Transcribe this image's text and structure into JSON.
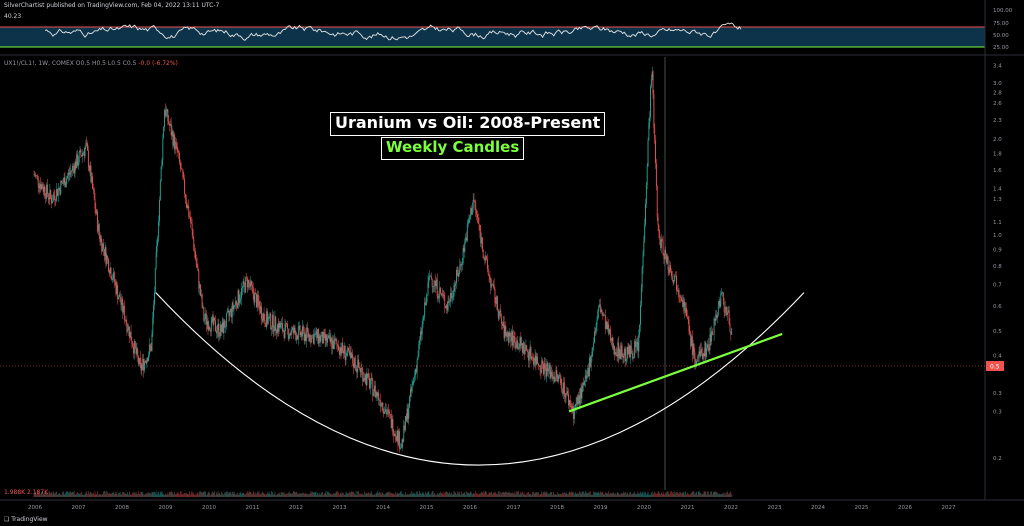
{
  "header": {
    "published": "SilverChartist published on TradingView.com, Feb 04, 2022 13:11 UTC-7"
  },
  "rsi": {
    "value": "40.23",
    "ticks": [
      "100.00",
      "75.00",
      "50.00",
      "25.00"
    ],
    "overbought_color": "#ef5350",
    "oversold_color": "#7cff3f"
  },
  "symbol_line": {
    "main": "UX1!/CL1!, 1W, COMEX O0.5 H0.5 L0.5 C0.5",
    "change": "-0.0 (-6.72%)"
  },
  "annotations": {
    "title": "Uranium vs Oil: 2008-Present",
    "subtitle": "Weekly Candles"
  },
  "volume_label": "1.988K 2.187K",
  "brand": "TradingView",
  "price_tag": "0.5",
  "chart_data": {
    "type": "candlestick",
    "title": "Uranium vs Oil: 2008-Present",
    "subtitle": "Weekly Candles",
    "y_scale": "log",
    "ylim": [
      0.15,
      3.5
    ],
    "y_ticks": [
      "3.4",
      "3.0",
      "2.8",
      "2.6",
      "2.3",
      "2.0",
      "1.8",
      "1.6",
      "1.4",
      "1.3",
      "1.1",
      "1.0",
      "0.9",
      "0.8",
      "0.7",
      "0.6",
      "0.5",
      "0.4",
      "0.4",
      "0.3",
      "0.3",
      "0.2"
    ],
    "x_ticks": [
      "2006",
      "2007",
      "2008",
      "2009",
      "2010",
      "2011",
      "2012",
      "2013",
      "2014",
      "2015",
      "2016",
      "2017",
      "2018",
      "2019",
      "2020",
      "2021",
      "2022",
      "2023",
      "2024",
      "2025",
      "2026",
      "2027"
    ],
    "up_color": "#26a69a",
    "down_color": "#ef5350",
    "close_series": [
      {
        "year": 2006.0,
        "value": 1.55
      },
      {
        "year": 2006.4,
        "value": 1.3
      },
      {
        "year": 2006.8,
        "value": 1.55
      },
      {
        "year": 2007.2,
        "value": 1.9
      },
      {
        "year": 2007.5,
        "value": 1.0
      },
      {
        "year": 2007.8,
        "value": 0.75
      },
      {
        "year": 2008.1,
        "value": 0.55
      },
      {
        "year": 2008.45,
        "value": 0.38
      },
      {
        "year": 2008.7,
        "value": 0.45
      },
      {
        "year": 2009.0,
        "value": 2.5
      },
      {
        "year": 2009.3,
        "value": 1.8
      },
      {
        "year": 2009.6,
        "value": 1.1
      },
      {
        "year": 2009.9,
        "value": 0.55
      },
      {
        "year": 2010.3,
        "value": 0.5
      },
      {
        "year": 2010.9,
        "value": 0.72
      },
      {
        "year": 2011.3,
        "value": 0.55
      },
      {
        "year": 2011.8,
        "value": 0.5
      },
      {
        "year": 2012.5,
        "value": 0.48
      },
      {
        "year": 2013.0,
        "value": 0.45
      },
      {
        "year": 2013.5,
        "value": 0.38
      },
      {
        "year": 2014.0,
        "value": 0.3
      },
      {
        "year": 2014.45,
        "value": 0.22
      },
      {
        "year": 2014.8,
        "value": 0.4
      },
      {
        "year": 2015.1,
        "value": 0.75
      },
      {
        "year": 2015.5,
        "value": 0.6
      },
      {
        "year": 2015.8,
        "value": 0.8
      },
      {
        "year": 2016.1,
        "value": 1.3
      },
      {
        "year": 2016.4,
        "value": 0.8
      },
      {
        "year": 2016.8,
        "value": 0.5
      },
      {
        "year": 2017.2,
        "value": 0.45
      },
      {
        "year": 2017.6,
        "value": 0.4
      },
      {
        "year": 2018.1,
        "value": 0.35
      },
      {
        "year": 2018.4,
        "value": 0.28
      },
      {
        "year": 2018.7,
        "value": 0.35
      },
      {
        "year": 2019.0,
        "value": 0.6
      },
      {
        "year": 2019.3,
        "value": 0.45
      },
      {
        "year": 2019.6,
        "value": 0.42
      },
      {
        "year": 2019.9,
        "value": 0.45
      },
      {
        "year": 2020.2,
        "value": 3.4
      },
      {
        "year": 2020.35,
        "value": 1.0
      },
      {
        "year": 2020.6,
        "value": 0.8
      },
      {
        "year": 2020.9,
        "value": 0.65
      },
      {
        "year": 2021.2,
        "value": 0.4
      },
      {
        "year": 2021.5,
        "value": 0.45
      },
      {
        "year": 2021.8,
        "value": 0.65
      },
      {
        "year": 2022.05,
        "value": 0.5
      }
    ],
    "trendlines": [
      {
        "type": "curve",
        "color": "#ffffff",
        "from": {
          "year": 2008.8,
          "value": 0.66
        },
        "trough": {
          "year": 2016.2,
          "value": 0.19
        },
        "to": {
          "year": 2023.7,
          "value": 0.66
        }
      },
      {
        "type": "line",
        "color": "#7cff3f",
        "from": {
          "year": 2018.3,
          "value": 0.28
        },
        "to": {
          "year": 2023.2,
          "value": 0.49
        }
      }
    ]
  }
}
